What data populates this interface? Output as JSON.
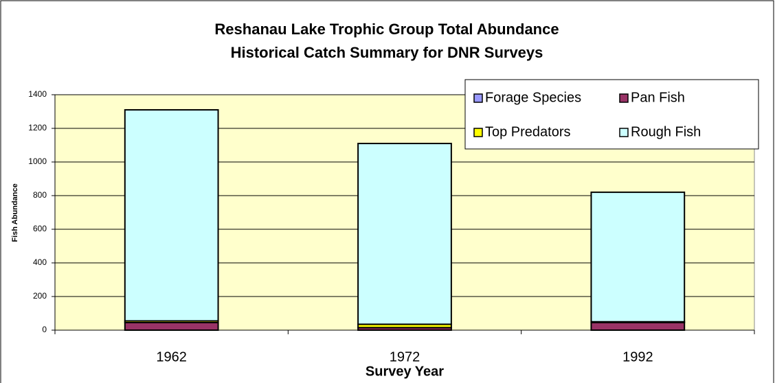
{
  "chart_data": {
    "type": "stacked_bar",
    "title": [
      "Reshanau Lake Trophic Group Total Abundance",
      "Historical Catch Summary for DNR Surveys"
    ],
    "x_label": "Survey Year",
    "y_label": "Fish Abundance",
    "categories": [
      "1962",
      "1972",
      "1992"
    ],
    "series": [
      {
        "name": "Forage Species",
        "color": "#9999ff",
        "values": [
          0,
          0,
          0
        ]
      },
      {
        "name": "Pan Fish",
        "color": "#993366",
        "values": [
          45,
          15,
          45
        ]
      },
      {
        "name": "Top Predators",
        "color": "#ffff00",
        "values": [
          10,
          20,
          5
        ]
      },
      {
        "name": "Rough Fish",
        "color": "#ccffff",
        "values": [
          1255,
          1075,
          770
        ]
      }
    ],
    "ylim": [
      0,
      1400
    ],
    "yticks": [
      0,
      200,
      400,
      600,
      800,
      1000,
      1200,
      1400
    ],
    "grid": true,
    "legend": "top-right"
  }
}
